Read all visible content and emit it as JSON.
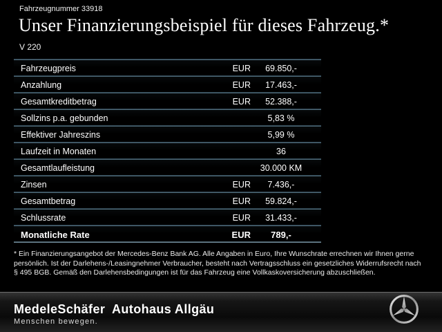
{
  "header": {
    "vehicle_number": "Fahrzeugnummer 33918",
    "title": "Unser Finanzierungsbeispiel für dieses Fahrzeug.*",
    "model": "V 220"
  },
  "table": {
    "rows": [
      {
        "label": "Fahrzeugpreis",
        "currency": "EUR",
        "value": "69.850,-",
        "bold": false
      },
      {
        "label": "Anzahlung",
        "currency": "EUR",
        "value": "17.463,-",
        "bold": false
      },
      {
        "label": "Gesamtkreditbetrag",
        "currency": "EUR",
        "value": "52.388,-",
        "bold": false
      },
      {
        "label": "Sollzins p.a. gebunden",
        "currency": "",
        "value": "5,83 %",
        "bold": false
      },
      {
        "label": "Effektiver Jahreszins",
        "currency": "",
        "value": "5,99 %",
        "bold": false
      },
      {
        "label": "Laufzeit in Monaten",
        "currency": "",
        "value": "36",
        "bold": false
      },
      {
        "label": "Gesamtlaufleistung",
        "currency": "",
        "value": "30.000 KM",
        "bold": false
      },
      {
        "label": "Zinsen",
        "currency": "EUR",
        "value": "7.436,-",
        "bold": false
      },
      {
        "label": "Gesamtbetrag",
        "currency": "EUR",
        "value": "59.824,-",
        "bold": false
      },
      {
        "label": "Schlussrate",
        "currency": "EUR",
        "value": "31.433,-",
        "bold": false
      },
      {
        "label": "Monatliche Rate",
        "currency": "EUR",
        "value": "789,-",
        "bold": true
      }
    ]
  },
  "footnote": {
    "lines": [
      "* Ein Finanzierungsangebot der Mercedes-Benz Bank AG. Alle Angaben in Euro, Ihre Wunschrate errechnen wir Ihnen gerne",
      "persönlich. Ist der Darlehens-/Leasingnehmer Verbraucher, besteht nach Vertragsschluss ein gesetzliches Widerrufsrecht nach",
      "§ 495 BGB. Gemäß den Darlehensbedingungen ist für das Fahrzeug eine Vollkaskoversicherung abzuschließen."
    ]
  },
  "footer": {
    "dealer_name": "MedeleSchäfer",
    "dealer_name2": "Autohaus Allgäu",
    "tagline": "Menschen bewegen.",
    "brand_icon": "mercedes-star"
  },
  "colors": {
    "background": "#000000",
    "separator": "#5a7888",
    "text": "#ffffff"
  }
}
